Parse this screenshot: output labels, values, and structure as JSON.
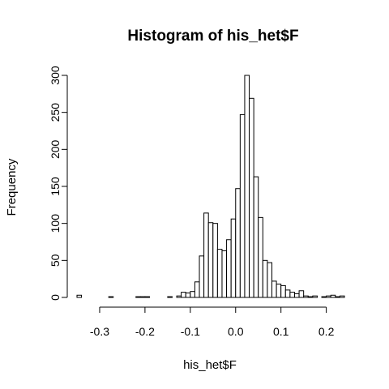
{
  "chart_data": {
    "type": "bar",
    "title": "Histogram of his_het$F",
    "xlabel": "his_het$F",
    "ylabel": "Frequency",
    "bin_width": 0.01,
    "xlim": [
      -0.35,
      0.24
    ],
    "ylim": [
      0,
      300
    ],
    "x_ticks": [
      -0.3,
      -0.2,
      -0.1,
      0.0,
      0.1,
      0.2
    ],
    "x_tick_labels": [
      "-0.3",
      "-0.2",
      "-0.1",
      "0.0",
      "0.1",
      "0.2"
    ],
    "y_ticks": [
      0,
      50,
      100,
      150,
      200,
      250,
      300
    ],
    "y_tick_labels": [
      "0",
      "50",
      "100",
      "150",
      "200",
      "250",
      "300"
    ],
    "bins": [
      {
        "start": -0.35,
        "end": -0.34,
        "count": 3
      },
      {
        "start": -0.34,
        "end": -0.33,
        "count": 0
      },
      {
        "start": -0.33,
        "end": -0.32,
        "count": 0
      },
      {
        "start": -0.32,
        "end": -0.31,
        "count": 0
      },
      {
        "start": -0.31,
        "end": -0.3,
        "count": 0
      },
      {
        "start": -0.3,
        "end": -0.29,
        "count": 0
      },
      {
        "start": -0.29,
        "end": -0.28,
        "count": 0
      },
      {
        "start": -0.28,
        "end": -0.27,
        "count": 1
      },
      {
        "start": -0.27,
        "end": -0.26,
        "count": 0
      },
      {
        "start": -0.26,
        "end": -0.25,
        "count": 0
      },
      {
        "start": -0.25,
        "end": -0.24,
        "count": 0
      },
      {
        "start": -0.24,
        "end": -0.23,
        "count": 0
      },
      {
        "start": -0.23,
        "end": -0.22,
        "count": 0
      },
      {
        "start": -0.22,
        "end": -0.21,
        "count": 1
      },
      {
        "start": -0.21,
        "end": -0.2,
        "count": 1
      },
      {
        "start": -0.2,
        "end": -0.19,
        "count": 1
      },
      {
        "start": -0.19,
        "end": -0.18,
        "count": 0
      },
      {
        "start": -0.18,
        "end": -0.17,
        "count": 0
      },
      {
        "start": -0.17,
        "end": -0.16,
        "count": 0
      },
      {
        "start": -0.16,
        "end": -0.15,
        "count": 0
      },
      {
        "start": -0.15,
        "end": -0.14,
        "count": 1
      },
      {
        "start": -0.14,
        "end": -0.13,
        "count": 0
      },
      {
        "start": -0.13,
        "end": -0.12,
        "count": 2
      },
      {
        "start": -0.12,
        "end": -0.11,
        "count": 7
      },
      {
        "start": -0.11,
        "end": -0.1,
        "count": 6
      },
      {
        "start": -0.1,
        "end": -0.09,
        "count": 8
      },
      {
        "start": -0.09,
        "end": -0.08,
        "count": 21
      },
      {
        "start": -0.08,
        "end": -0.07,
        "count": 56
      },
      {
        "start": -0.07,
        "end": -0.06,
        "count": 114
      },
      {
        "start": -0.06,
        "end": -0.05,
        "count": 101
      },
      {
        "start": -0.05,
        "end": -0.04,
        "count": 100
      },
      {
        "start": -0.04,
        "end": -0.03,
        "count": 65
      },
      {
        "start": -0.03,
        "end": -0.02,
        "count": 63
      },
      {
        "start": -0.02,
        "end": -0.01,
        "count": 78
      },
      {
        "start": -0.01,
        "end": 0.0,
        "count": 106
      },
      {
        "start": 0.0,
        "end": 0.01,
        "count": 147
      },
      {
        "start": 0.01,
        "end": 0.02,
        "count": 247
      },
      {
        "start": 0.02,
        "end": 0.03,
        "count": 300
      },
      {
        "start": 0.03,
        "end": 0.04,
        "count": 269
      },
      {
        "start": 0.04,
        "end": 0.05,
        "count": 163
      },
      {
        "start": 0.05,
        "end": 0.06,
        "count": 108
      },
      {
        "start": 0.06,
        "end": 0.07,
        "count": 50
      },
      {
        "start": 0.07,
        "end": 0.08,
        "count": 47
      },
      {
        "start": 0.08,
        "end": 0.09,
        "count": 22
      },
      {
        "start": 0.09,
        "end": 0.1,
        "count": 18
      },
      {
        "start": 0.1,
        "end": 0.11,
        "count": 16
      },
      {
        "start": 0.11,
        "end": 0.12,
        "count": 10
      },
      {
        "start": 0.12,
        "end": 0.13,
        "count": 7
      },
      {
        "start": 0.13,
        "end": 0.14,
        "count": 5
      },
      {
        "start": 0.14,
        "end": 0.15,
        "count": 9
      },
      {
        "start": 0.15,
        "end": 0.16,
        "count": 2
      },
      {
        "start": 0.16,
        "end": 0.17,
        "count": 1
      },
      {
        "start": 0.17,
        "end": 0.18,
        "count": 2
      },
      {
        "start": 0.18,
        "end": 0.19,
        "count": 0
      },
      {
        "start": 0.19,
        "end": 0.2,
        "count": 1
      },
      {
        "start": 0.2,
        "end": 0.21,
        "count": 2
      },
      {
        "start": 0.21,
        "end": 0.22,
        "count": 3
      },
      {
        "start": 0.22,
        "end": 0.23,
        "count": 1
      },
      {
        "start": 0.23,
        "end": 0.24,
        "count": 2
      }
    ],
    "bar_fill": "#ffffff",
    "bar_stroke": "#000000",
    "grid": false,
    "legend": "none"
  }
}
